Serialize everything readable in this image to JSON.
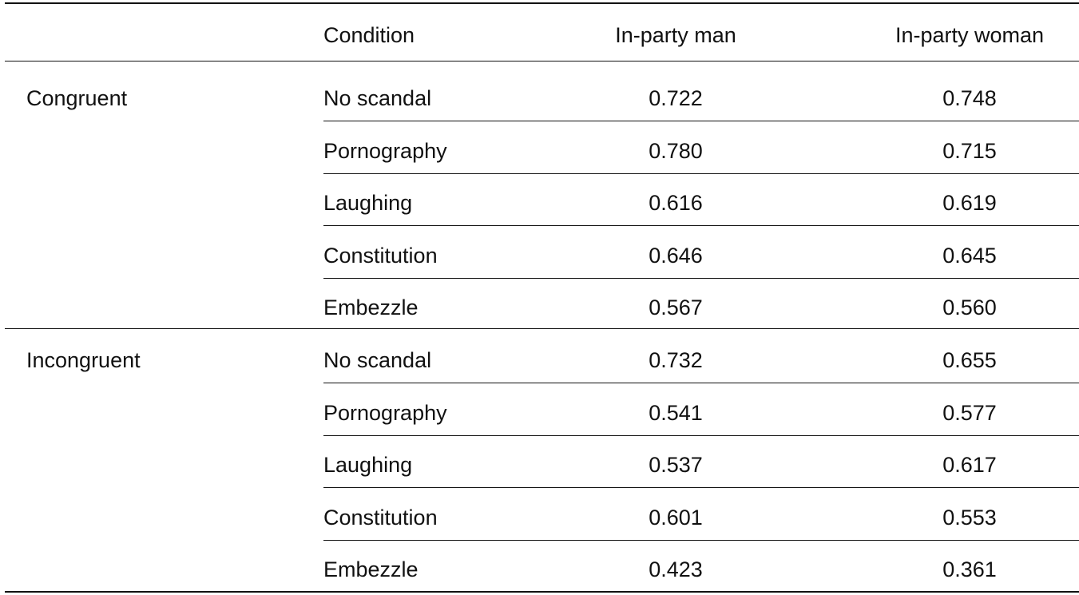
{
  "table": {
    "headers": {
      "group": "",
      "condition": "Condition",
      "man": "In-party man",
      "woman": "In-party woman"
    },
    "groups": [
      {
        "label": "Congruent",
        "rows": [
          {
            "condition": "No scandal",
            "man": "0.722",
            "woman": "0.748"
          },
          {
            "condition": "Pornography",
            "man": "0.780",
            "woman": "0.715"
          },
          {
            "condition": "Laughing",
            "man": "0.616",
            "woman": "0.619"
          },
          {
            "condition": "Constitution",
            "man": "0.646",
            "woman": "0.645"
          },
          {
            "condition": "Embezzle",
            "man": "0.567",
            "woman": "0.560"
          }
        ]
      },
      {
        "label": "Incongruent",
        "rows": [
          {
            "condition": "No scandal",
            "man": "0.732",
            "woman": "0.655"
          },
          {
            "condition": "Pornography",
            "man": "0.541",
            "woman": "0.577"
          },
          {
            "condition": "Laughing",
            "man": "0.537",
            "woman": "0.617"
          },
          {
            "condition": "Constitution",
            "man": "0.601",
            "woman": "0.553"
          },
          {
            "condition": "Embezzle",
            "man": "0.423",
            "woman": "0.361"
          }
        ]
      }
    ]
  }
}
